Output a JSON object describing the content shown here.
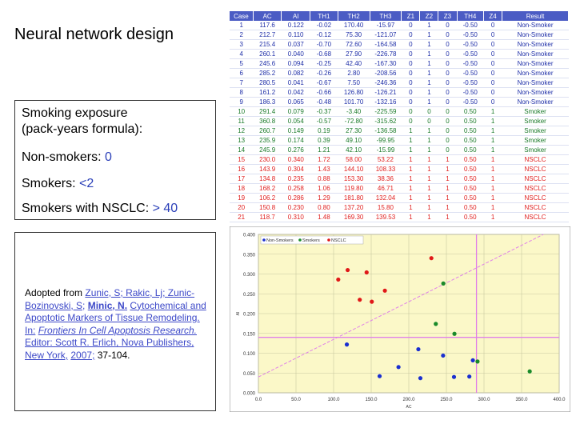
{
  "slide": {
    "title": "Neural network design",
    "exposure": {
      "heading_line1": "Smoking exposure",
      "heading_line2": "(pack-years formula):",
      "nonsmokers_label": "Non-smokers:",
      "nonsmokers_value": "0",
      "smokers_label": "Smokers:",
      "smokers_value": "<2",
      "nsclc_label": "Smokers with NSCLC:",
      "nsclc_value": "> 40"
    },
    "citation": {
      "prefix": "Adopted from",
      "authors": "Zunic, S; Rakic, Lj; Zunic-Bozinovski, S;",
      "author_bold": "Minic, N.",
      "chapter": "Cytochemical and Apoptotic Markers of Tissue Remodeling.",
      "in_label": "In:",
      "book": "Frontiers In Cell Apoptosis Research.",
      "editor_publisher": "Editor: Scott R. Erlich, Nova Publishers, New York,",
      "year": "2007;",
      "pages": "37-104."
    }
  },
  "table": {
    "headers": [
      "Case",
      "AC",
      "AI",
      "TH1",
      "TH2",
      "TH3",
      "Z1",
      "Z2",
      "Z3",
      "TH4",
      "Z4",
      "Result"
    ],
    "rows": [
      [
        "1",
        "117.6",
        "0.122",
        "-0.02",
        "170.40",
        "-15.97",
        "0",
        "1",
        "0",
        "-0.50",
        "0",
        "Non-Smoker"
      ],
      [
        "2",
        "212.7",
        "0.110",
        "-0.12",
        "75.30",
        "-121.07",
        "0",
        "1",
        "0",
        "-0.50",
        "0",
        "Non-Smoker"
      ],
      [
        "3",
        "215.4",
        "0.037",
        "-0.70",
        "72.60",
        "-164.58",
        "0",
        "1",
        "0",
        "-0.50",
        "0",
        "Non-Smoker"
      ],
      [
        "4",
        "260.1",
        "0.040",
        "-0.68",
        "27.90",
        "-226.78",
        "0",
        "1",
        "0",
        "-0.50",
        "0",
        "Non-Smoker"
      ],
      [
        "5",
        "245.6",
        "0.094",
        "-0.25",
        "42.40",
        "-167.30",
        "0",
        "1",
        "0",
        "-0.50",
        "0",
        "Non-Smoker"
      ],
      [
        "6",
        "285.2",
        "0.082",
        "-0.26",
        "2.80",
        "-208.56",
        "0",
        "1",
        "0",
        "-0.50",
        "0",
        "Non-Smoker"
      ],
      [
        "7",
        "280.5",
        "0.041",
        "-0.67",
        "7.50",
        "-246.36",
        "0",
        "1",
        "0",
        "-0.50",
        "0",
        "Non-Smoker"
      ],
      [
        "8",
        "161.2",
        "0.042",
        "-0.66",
        "126.80",
        "-126.21",
        "0",
        "1",
        "0",
        "-0.50",
        "0",
        "Non-Smoker"
      ],
      [
        "9",
        "186.3",
        "0.065",
        "-0.48",
        "101.70",
        "-132.16",
        "0",
        "1",
        "0",
        "-0.50",
        "0",
        "Non-Smoker"
      ],
      [
        "10",
        "291.4",
        "0.079",
        "-0.37",
        "-3.40",
        "-225.59",
        "0",
        "0",
        "0",
        "0.50",
        "1",
        "Smoker"
      ],
      [
        "11",
        "360.8",
        "0.054",
        "-0.57",
        "-72.80",
        "-315.62",
        "0",
        "0",
        "0",
        "0.50",
        "1",
        "Smoker"
      ],
      [
        "12",
        "260.7",
        "0.149",
        "0.19",
        "27.30",
        "-136.58",
        "1",
        "1",
        "0",
        "0.50",
        "1",
        "Smoker"
      ],
      [
        "13",
        "235.9",
        "0.174",
        "0.39",
        "49.10",
        "-99.95",
        "1",
        "1",
        "0",
        "0.50",
        "1",
        "Smoker"
      ],
      [
        "14",
        "245.9",
        "0.276",
        "1.21",
        "42.10",
        "-15.99",
        "1",
        "1",
        "0",
        "0.50",
        "1",
        "Smoker"
      ],
      [
        "15",
        "230.0",
        "0.340",
        "1.72",
        "58.00",
        "53.22",
        "1",
        "1",
        "1",
        "0.50",
        "1",
        "NSCLC"
      ],
      [
        "16",
        "143.9",
        "0.304",
        "1.43",
        "144.10",
        "108.33",
        "1",
        "1",
        "1",
        "0.50",
        "1",
        "NSCLC"
      ],
      [
        "17",
        "134.8",
        "0.235",
        "0.88",
        "153.30",
        "38.36",
        "1",
        "1",
        "1",
        "0.50",
        "1",
        "NSCLC"
      ],
      [
        "18",
        "168.2",
        "0.258",
        "1.06",
        "119.80",
        "46.71",
        "1",
        "1",
        "1",
        "0.50",
        "1",
        "NSCLC"
      ],
      [
        "19",
        "106.2",
        "0.286",
        "1.29",
        "181.80",
        "132.04",
        "1",
        "1",
        "1",
        "0.50",
        "1",
        "NSCLC"
      ],
      [
        "20",
        "150.8",
        "0.230",
        "0.80",
        "137.20",
        "15.80",
        "1",
        "1",
        "1",
        "0.50",
        "1",
        "NSCLC"
      ],
      [
        "21",
        "118.7",
        "0.310",
        "1.48",
        "169.30",
        "139.53",
        "1",
        "1",
        "1",
        "0.50",
        "1",
        "NSCLC"
      ]
    ],
    "header_color": "#4b5cc4",
    "nonsmoker_color": "#1f2fa8",
    "smoker_color": "#1a7a2a",
    "nsclc_color": "#e02020"
  },
  "chart_data": {
    "type": "scatter",
    "xlabel": "AC",
    "ylabel": "AI",
    "xlim": [
      0,
      400
    ],
    "ylim": [
      0,
      0.4
    ],
    "x_ticks": [
      "0.0",
      "50.0",
      "100.0",
      "150.0",
      "200.0",
      "250.0",
      "300.0",
      "350.0",
      "400.0"
    ],
    "y_ticks": [
      "0.000",
      "0.050",
      "0.100",
      "0.150",
      "0.200",
      "0.250",
      "0.300",
      "0.350",
      "0.400"
    ],
    "legend": [
      "Non-Smokers",
      "Smokers",
      "NSCLC"
    ],
    "background": "#fbf8c8",
    "series": [
      {
        "name": "Non-Smokers",
        "color": "#1a2fd0",
        "points": [
          [
            117.6,
            0.122
          ],
          [
            212.7,
            0.11
          ],
          [
            215.4,
            0.037
          ],
          [
            260.1,
            0.04
          ],
          [
            245.6,
            0.094
          ],
          [
            285.2,
            0.082
          ],
          [
            280.5,
            0.041
          ],
          [
            161.2,
            0.042
          ],
          [
            186.3,
            0.065
          ]
        ]
      },
      {
        "name": "Smokers",
        "color": "#1a8a2a",
        "points": [
          [
            291.4,
            0.079
          ],
          [
            360.8,
            0.054
          ],
          [
            260.7,
            0.149
          ],
          [
            235.9,
            0.174
          ],
          [
            245.9,
            0.276
          ]
        ]
      },
      {
        "name": "NSCLC",
        "color": "#e01818",
        "points": [
          [
            230.0,
            0.34
          ],
          [
            143.9,
            0.304
          ],
          [
            134.8,
            0.235
          ],
          [
            168.2,
            0.258
          ],
          [
            106.2,
            0.286
          ],
          [
            150.8,
            0.23
          ],
          [
            118.7,
            0.31
          ]
        ]
      }
    ],
    "reference_lines": {
      "vertical_x": 290,
      "horizontal_y": 0.14,
      "diagonal": [
        [
          0,
          0.04
        ],
        [
          400,
          0.42
        ]
      ],
      "line_color": "#e080e8"
    }
  }
}
